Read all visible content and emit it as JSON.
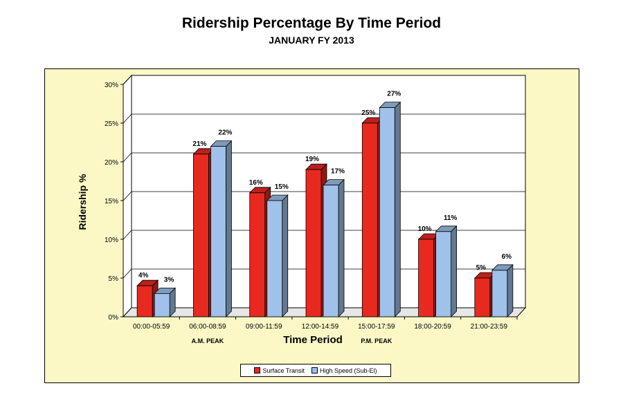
{
  "colors": {
    "series1": "#e8291f",
    "series2": "#9fc1ea",
    "panel_bg": "#fbf8c6",
    "plot_bg": "#ffffff"
  },
  "chart_data": {
    "type": "bar",
    "title": "Ridership Percentage By Time Period",
    "subtitle": "JANUARY FY 2013",
    "xlabel": "Time Period",
    "ylabel": "Ridership %",
    "categories": [
      "00:00-05:59",
      "06:00-08:59",
      "09:00-11:59",
      "12:00-14:59",
      "15:00-17:59",
      "18:00-20:59",
      "21:00-23:59"
    ],
    "sublabels": [
      "",
      "A.M. PEAK",
      "",
      "",
      "P.M. PEAK",
      "",
      ""
    ],
    "series": [
      {
        "name": "Surface Transit",
        "values": [
          4,
          21,
          16,
          19,
          25,
          10,
          5
        ],
        "labels": [
          "4%",
          "21%",
          "16%",
          "19%",
          "25%",
          "10%",
          "5%"
        ]
      },
      {
        "name": "High Speed (Sub-El)",
        "values": [
          3,
          22,
          15,
          17,
          27,
          11,
          6
        ],
        "labels": [
          "3%",
          "22%",
          "15%",
          "17%",
          "27%",
          "11%",
          "6%"
        ]
      }
    ],
    "yticks": [
      "0%",
      "5%",
      "10%",
      "15%",
      "20%",
      "25%",
      "30%"
    ],
    "ylim": [
      0,
      30
    ],
    "grid": true,
    "legend_position": "bottom"
  }
}
